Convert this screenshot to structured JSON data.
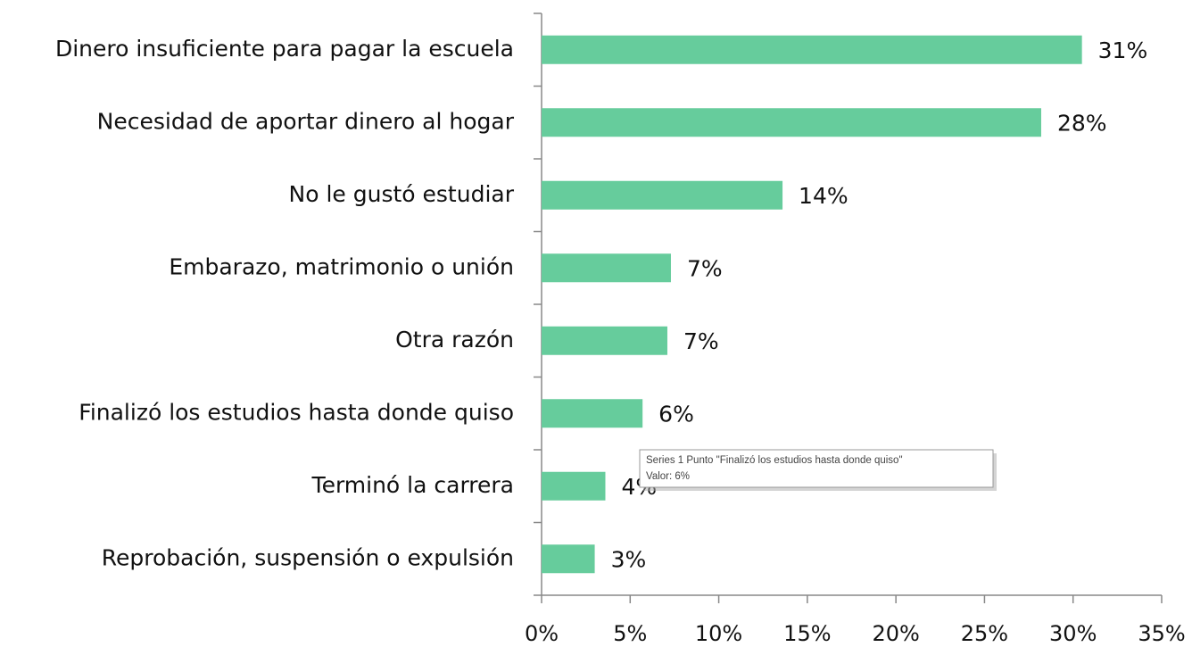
{
  "chart_data": {
    "type": "bar",
    "orientation": "horizontal",
    "categories": [
      "Dinero insuficiente para pagar la escuela",
      "Necesidad de aportar dinero al hogar",
      "No le gustó estudiar",
      "Embarazo, matrimonio o unión",
      "Otra razón",
      "Finalizó los estudios hasta donde quiso",
      "Terminó la carrera",
      "Reprobación, suspensión o expulsión"
    ],
    "values": [
      30.5,
      28.2,
      13.6,
      7.3,
      7.1,
      5.7,
      3.6,
      3.0
    ],
    "value_labels": [
      "31%",
      "28%",
      "14%",
      "7%",
      "7%",
      "6%",
      "4%",
      "3%"
    ],
    "color": "#66cc9c",
    "xlim": [
      0,
      35
    ],
    "xticks": [
      {
        "value": 0,
        "label": "0%"
      },
      {
        "value": 5,
        "label": "5%"
      },
      {
        "value": 10,
        "label": "10%"
      },
      {
        "value": 15,
        "label": "15%"
      },
      {
        "value": 20,
        "label": "20%"
      },
      {
        "value": 25,
        "label": "25%"
      },
      {
        "value": 30,
        "label": "30%"
      },
      {
        "value": 35,
        "label": "35%"
      }
    ],
    "grid": false,
    "tooltip": [
      "Series 1 Punto \"Finalizó los estudios hasta donde quiso\"",
      "Valor: 6%"
    ]
  }
}
